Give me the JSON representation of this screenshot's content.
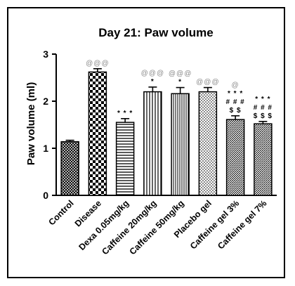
{
  "chart_data": {
    "type": "bar",
    "title": "Day 21: Paw volume",
    "ylabel": "Paw volume (ml)",
    "xlabel": "",
    "ylim": [
      0,
      3
    ],
    "yticks": [
      "0",
      "1",
      "2",
      "3"
    ],
    "grid": false,
    "categories": [
      "Control",
      "Disease",
      "Dexa 0.05mg/kg",
      "Caffeine 20mg/kg",
      "Caffeine 50mg/kg",
      "Placebo gel",
      "Caffeine gel 3%",
      "Caffeine gel 7%"
    ],
    "values": [
      1.14,
      2.62,
      1.55,
      2.2,
      2.16,
      2.2,
      1.61,
      1.52
    ],
    "errors": [
      0.03,
      0.07,
      0.08,
      0.1,
      0.13,
      0.09,
      0.08,
      0.05
    ],
    "patterns": [
      "crosshatch",
      "checker",
      "horizontal-lines",
      "vertical-lines",
      "vertical-lines-fine",
      "dots",
      "diagonal-dense",
      "diagonal-dense"
    ],
    "annotations": [
      [],
      [
        {
          "text": "@@@",
          "color": "gray"
        }
      ],
      [
        {
          "text": "* * *",
          "color": "black"
        }
      ],
      [
        {
          "text": "@@@",
          "color": "gray"
        },
        {
          "text": "*",
          "color": "black"
        }
      ],
      [
        {
          "text": "@@@",
          "color": "gray"
        },
        {
          "text": "*",
          "color": "black"
        }
      ],
      [
        {
          "text": "@@@",
          "color": "gray"
        }
      ],
      [
        {
          "text": "@",
          "color": "gray"
        },
        {
          "text": "* * *",
          "color": "black"
        },
        {
          "text": "# # #",
          "color": "black"
        },
        {
          "text": "$ $",
          "color": "black"
        }
      ],
      [
        {
          "text": "* * *",
          "color": "black"
        },
        {
          "text": "# # #",
          "color": "black"
        },
        {
          "text": "$ $ $",
          "color": "black"
        }
      ]
    ],
    "colors": {
      "bar_stroke": "#000000",
      "fill": "#000000",
      "annotation_gray": "#8a8a8a"
    }
  }
}
